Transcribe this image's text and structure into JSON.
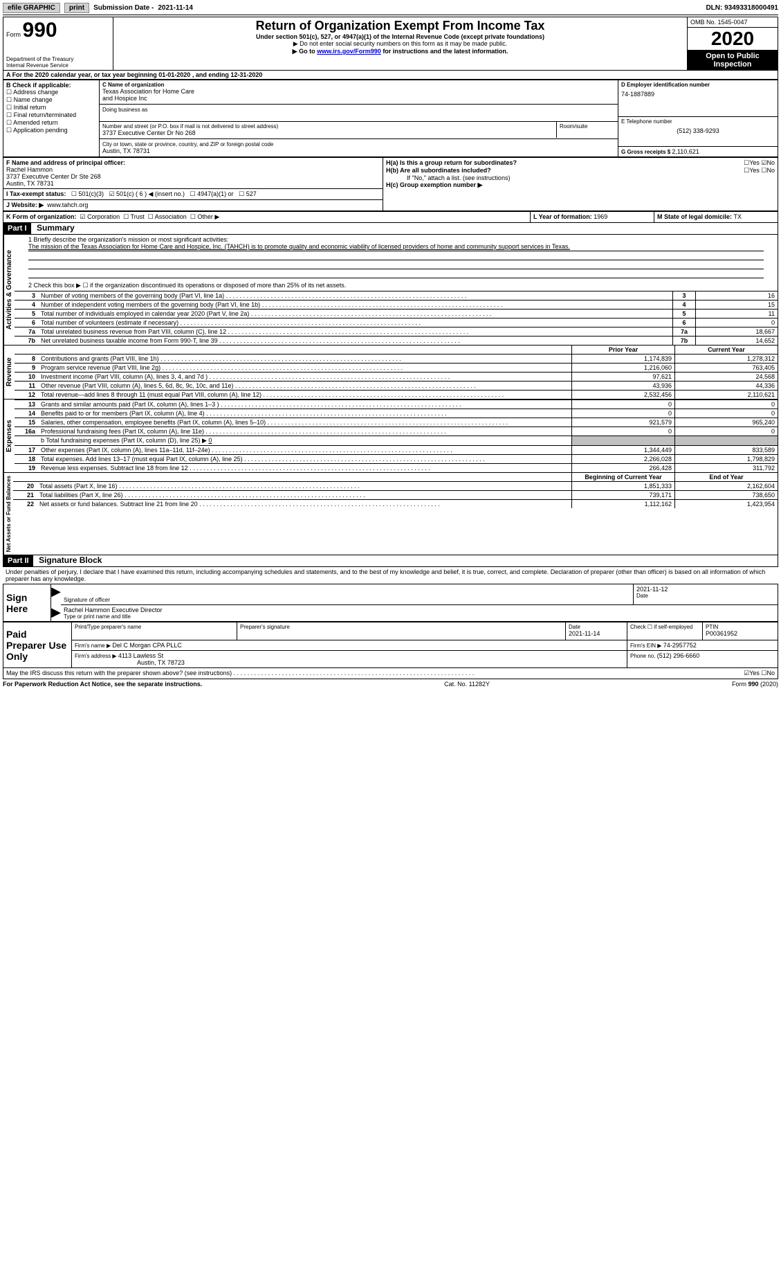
{
  "topbar": {
    "efile": "efile GRAPHIC",
    "print": "print",
    "subdate_label": "Submission Date - ",
    "subdate": "2021-11-14",
    "dln_label": "DLN: ",
    "dln": "93493318000491"
  },
  "header": {
    "form_label": "Form",
    "form_num": "990",
    "dept": "Department of the Treasury\nInternal Revenue Service",
    "title": "Return of Organization Exempt From Income Tax",
    "subtitle": "Under section 501(c), 527, or 4947(a)(1) of the Internal Revenue Code (except private foundations)",
    "instr1": "Do not enter social security numbers on this form as it may be made public.",
    "instr2_pre": "Go to ",
    "instr2_link": "www.irs.gov/Form990",
    "instr2_post": " for instructions and the latest information.",
    "omb": "OMB No. 1545-0047",
    "year": "2020",
    "open": "Open to Public Inspection"
  },
  "period": {
    "text_pre": "For the 2020 calendar year, or tax year beginning ",
    "begin": "01-01-2020",
    "mid": " , and ending ",
    "end": "12-31-2020"
  },
  "boxB": {
    "label": "B Check if applicable:",
    "items": [
      "Address change",
      "Name change",
      "Initial return",
      "Final return/terminated",
      "Amended return",
      "Application pending"
    ]
  },
  "boxC": {
    "name_label": "C Name of organization",
    "name1": "Texas Association for Home Care",
    "name2": "and Hospice Inc",
    "dba_label": "Doing business as",
    "addr_label": "Number and street (or P.O. box if mail is not delivered to street address)",
    "room_label": "Room/suite",
    "addr": "3737 Executive Center Dr No 268",
    "city_label": "City or town, state or province, country, and ZIP or foreign postal code",
    "city": "Austin, TX  78731"
  },
  "boxD": {
    "label": "D Employer identification number",
    "ein": "74-1887889"
  },
  "boxE": {
    "label": "E Telephone number",
    "phone": "(512) 338-9293"
  },
  "boxG": {
    "label": "G Gross receipts $ ",
    "val": "2,110,621"
  },
  "boxF": {
    "label": "F  Name and address of principal officer:",
    "name": "Rachel Hammon",
    "addr1": "3737 Executive Center Dr Ste 268",
    "addr2": "Austin, TX  78731"
  },
  "boxH": {
    "a_label": "H(a)  Is this a group return for subordinates?",
    "a_yes": "Yes",
    "a_no": "No",
    "b_label": "H(b)  Are all subordinates included?",
    "b_note": "If \"No,\" attach a list. (see instructions)",
    "c_label": "H(c)  Group exemption number ▶"
  },
  "boxI": {
    "label": "I  Tax-exempt status:",
    "o1": "501(c)(3)",
    "o2": "501(c) ( ",
    "o2n": "6",
    "o2p": " ) ◀ (insert no.)",
    "o3": "4947(a)(1) or",
    "o4": "527"
  },
  "boxJ": {
    "label": "J  Website: ▶",
    "url": "www.tahch.org"
  },
  "boxK": {
    "label": "K Form of organization:",
    "o1": "Corporation",
    "o2": "Trust",
    "o3": "Association",
    "o4": "Other ▶"
  },
  "boxL": {
    "label": "L Year of formation: ",
    "val": "1969"
  },
  "boxM": {
    "label": "M State of legal domicile: ",
    "val": "TX"
  },
  "part1": {
    "bar": "Part I",
    "title": "Summary",
    "l1_label": "1  Briefly describe the organization's mission or most significant activities:",
    "l1_text": "The mission of the Texas Association for Home Care and Hospice, Inc. (TAHCH) is to promote quality and economic viability of licensed providers of home and community support services in Texas.",
    "l2": "2   Check this box ▶ ☐  if the organization discontinued its operations or disposed of more than 25% of its net assets.",
    "sections": {
      "gov": "Activities & Governance",
      "rev": "Revenue",
      "exp": "Expenses",
      "net": "Net Assets or Fund Balances"
    },
    "col_prior": "Prior Year",
    "col_curr": "Current Year",
    "col_boy": "Beginning of Current Year",
    "col_eoy": "End of Year",
    "lines_single": [
      {
        "n": "3",
        "d": "Number of voting members of the governing body (Part VI, line 1a)",
        "v": "16"
      },
      {
        "n": "4",
        "d": "Number of independent voting members of the governing body (Part VI, line 1b)",
        "v": "15"
      },
      {
        "n": "5",
        "d": "Total number of individuals employed in calendar year 2020 (Part V, line 2a)",
        "v": "11"
      },
      {
        "n": "6",
        "d": "Total number of volunteers (estimate if necessary)",
        "v": "0"
      },
      {
        "n": "7a",
        "d": "Total unrelated business revenue from Part VIII, column (C), line 12",
        "v": "18,667"
      },
      {
        "n": "7b",
        "d": "Net unrelated business taxable income from Form 990-T, line 39",
        "v": "14,652"
      }
    ],
    "lines_rev": [
      {
        "n": "8",
        "d": "Contributions and grants (Part VIII, line 1h)",
        "p": "1,174,839",
        "c": "1,278,312"
      },
      {
        "n": "9",
        "d": "Program service revenue (Part VIII, line 2g)",
        "p": "1,216,060",
        "c": "763,405"
      },
      {
        "n": "10",
        "d": "Investment income (Part VIII, column (A), lines 3, 4, and 7d )",
        "p": "97,621",
        "c": "24,568"
      },
      {
        "n": "11",
        "d": "Other revenue (Part VIII, column (A), lines 5, 6d, 8c, 9c, 10c, and 11e)",
        "p": "43,936",
        "c": "44,336"
      },
      {
        "n": "12",
        "d": "Total revenue—add lines 8 through 11 (must equal Part VIII, column (A), line 12)",
        "p": "2,532,456",
        "c": "2,110,621"
      }
    ],
    "lines_exp": [
      {
        "n": "13",
        "d": "Grants and similar amounts paid (Part IX, column (A), lines 1–3 )",
        "p": "0",
        "c": "0"
      },
      {
        "n": "14",
        "d": "Benefits paid to or for members (Part IX, column (A), line 4)",
        "p": "0",
        "c": "0"
      },
      {
        "n": "15",
        "d": "Salaries, other compensation, employee benefits (Part IX, column (A), lines 5–10)",
        "p": "921,579",
        "c": "965,240"
      },
      {
        "n": "16a",
        "d": "Professional fundraising fees (Part IX, column (A), line 11e)",
        "p": "0",
        "c": "0"
      }
    ],
    "l16b_pre": "b  Total fundraising expenses (Part IX, column (D), line 25) ▶",
    "l16b_val": "0",
    "lines_exp2": [
      {
        "n": "17",
        "d": "Other expenses (Part IX, column (A), lines 11a–11d, 11f–24e)",
        "p": "1,344,449",
        "c": "833,589"
      },
      {
        "n": "18",
        "d": "Total expenses. Add lines 13–17 (must equal Part IX, column (A), line 25)",
        "p": "2,266,028",
        "c": "1,798,829"
      },
      {
        "n": "19",
        "d": "Revenue less expenses. Subtract line 18 from line 12",
        "p": "266,428",
        "c": "311,792"
      }
    ],
    "lines_net": [
      {
        "n": "20",
        "d": "Total assets (Part X, line 16)",
        "p": "1,851,333",
        "c": "2,162,604"
      },
      {
        "n": "21",
        "d": "Total liabilities (Part X, line 26)",
        "p": "739,171",
        "c": "738,650"
      },
      {
        "n": "22",
        "d": "Net assets or fund balances. Subtract line 21 from line 20",
        "p": "1,112,162",
        "c": "1,423,954"
      }
    ]
  },
  "part2": {
    "bar": "Part II",
    "title": "Signature Block",
    "decl": "Under penalties of perjury, I declare that I have examined this return, including accompanying schedules and statements, and to the best of my knowledge and belief, it is true, correct, and complete. Declaration of preparer (other than officer) is based on all information of which preparer has any knowledge.",
    "sign_here": "Sign Here",
    "sig_officer": "Signature of officer",
    "sig_date": "2021-11-12",
    "date_label": "Date",
    "officer_name": "Rachel Hammon  Executive Director",
    "type_label": "Type or print name and title",
    "paid": "Paid Preparer Use Only",
    "prep_name_label": "Print/Type preparer's name",
    "prep_sig_label": "Preparer's signature",
    "prep_date_label": "Date",
    "prep_date": "2021-11-14",
    "check_label": "Check ☐ if self-employed",
    "ptin_label": "PTIN",
    "ptin": "P00361952",
    "firm_name_label": "Firm's name    ▶ ",
    "firm_name": "Del C Morgan CPA PLLC",
    "firm_ein_label": "Firm's EIN ▶ ",
    "firm_ein": "74-2957752",
    "firm_addr_label": "Firm's address ▶ ",
    "firm_addr1": "4113 Lawless St",
    "firm_addr2": "Austin, TX  78723",
    "firm_phone_label": "Phone no. ",
    "firm_phone": "(512) 296-6660",
    "discuss": "May the IRS discuss this return with the preparer shown above? (see instructions)",
    "yes": "Yes",
    "no": "No"
  },
  "footer": {
    "pra": "For Paperwork Reduction Act Notice, see the separate instructions.",
    "cat": "Cat. No. 11282Y",
    "form": "Form 990 (2020)"
  }
}
